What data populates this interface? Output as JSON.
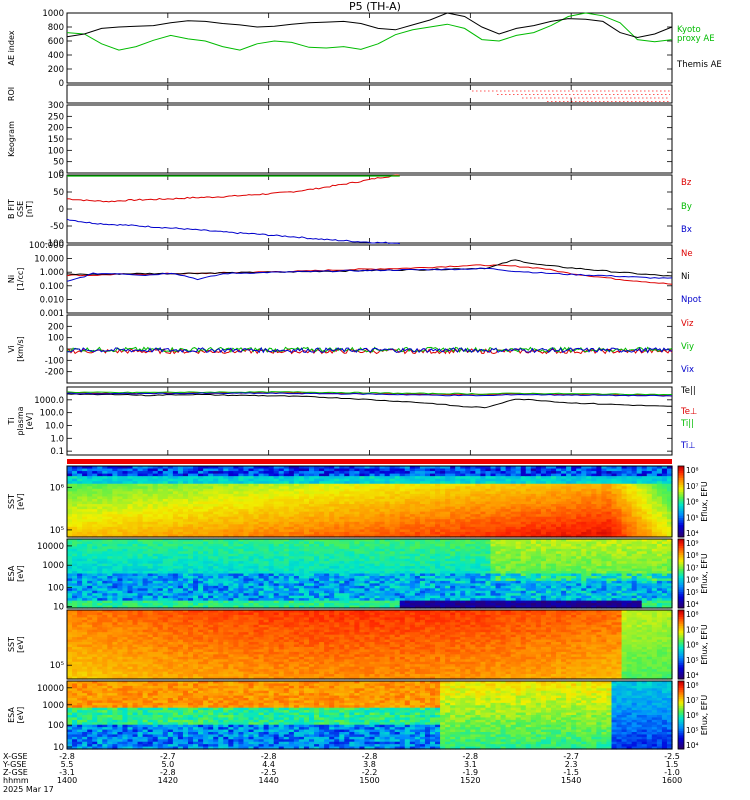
{
  "page": {
    "title": "P5 (TH-A)"
  },
  "chart_data": [
    {
      "id": "ae",
      "type": "line",
      "ylabel": "AE index",
      "ylim": [
        0,
        1000
      ],
      "yticks": [
        0,
        200,
        400,
        600,
        800,
        1000
      ],
      "series": [
        {
          "name": "Kyoto proxy AE",
          "legend_lines": [
            "Kyoto",
            "proxy AE"
          ],
          "color": "#00bb00",
          "values": [
            720,
            700,
            560,
            470,
            520,
            610,
            680,
            630,
            600,
            520,
            470,
            560,
            600,
            580,
            510,
            500,
            520,
            480,
            560,
            690,
            760,
            800,
            840,
            780,
            620,
            600,
            680,
            720,
            820,
            950,
            1000,
            960,
            860,
            620,
            590,
            620
          ]
        },
        {
          "name": "Themis AE",
          "legend_lines": [
            "Themis AE"
          ],
          "color": "#000000",
          "values": [
            660,
            700,
            780,
            800,
            810,
            820,
            860,
            890,
            880,
            850,
            830,
            800,
            810,
            840,
            860,
            870,
            880,
            850,
            780,
            760,
            830,
            900,
            1000,
            950,
            800,
            700,
            780,
            820,
            880,
            920,
            910,
            880,
            720,
            650,
            700,
            800
          ]
        }
      ]
    },
    {
      "id": "roi",
      "type": "scatter",
      "ylabel": "ROI",
      "rows": 4,
      "start_fraction": 0.67,
      "color": "#ff0000"
    },
    {
      "id": "keogram",
      "type": "heatmap",
      "ylabel": "Keogram",
      "yticks": [
        0,
        50,
        100,
        150,
        200,
        250,
        300
      ],
      "ylim": [
        0,
        300
      ]
    },
    {
      "id": "bfield",
      "type": "line",
      "ylabel": "B FIT",
      "ylabel2": "GSE",
      "ylabel3": "[nT]",
      "ylim": [
        -100,
        100
      ],
      "yticks": [
        -100,
        -50,
        0,
        50,
        100
      ],
      "ytick_labels": [
        "-100",
        "-50",
        "0",
        "50",
        "100"
      ],
      "series": [
        {
          "name": "Bz",
          "color": "#dd0000",
          "t_end": 0.55,
          "values": [
            30,
            25,
            22,
            26,
            28,
            30,
            33,
            35,
            38,
            42,
            46,
            52,
            60,
            70,
            80,
            92,
            100
          ]
        },
        {
          "name": "By",
          "color": "#00bb00",
          "t_end": 0.55,
          "values": [
            100,
            100,
            100,
            100,
            100,
            100,
            100,
            100,
            100,
            100,
            100,
            100,
            100,
            100,
            100,
            100,
            100
          ]
        },
        {
          "name": "Bx",
          "color": "#0000cc",
          "t_end": 0.55,
          "values": [
            -30,
            -40,
            -45,
            -48,
            -52,
            -56,
            -60,
            -65,
            -70,
            -73,
            -78,
            -82,
            -88,
            -92,
            -96,
            -99,
            -100
          ]
        }
      ]
    },
    {
      "id": "density",
      "type": "line",
      "ylabel": "Ni",
      "ylabel2": "[1/cc]",
      "yscale": "log",
      "ylim": [
        0.001,
        100
      ],
      "yticks": [
        0.001,
        0.01,
        0.1,
        1,
        10,
        100
      ],
      "ytick_labels": [
        "0.001",
        "0.010",
        "0.100",
        "1.000",
        "10.000",
        "100.000"
      ],
      "series": [
        {
          "name": "Ne",
          "color": "#dd0000",
          "values": [
            0.6,
            0.6,
            0.7,
            0.7,
            0.8,
            0.8,
            0.9,
            1.0,
            1.1,
            1.2,
            1.4,
            1.6,
            1.8,
            2.0,
            2.4,
            3.0,
            3.3,
            2.8,
            2.0,
            0.9,
            0.5,
            0.3,
            0.2,
            0.13
          ]
        },
        {
          "name": "Ni",
          "color": "#000000",
          "values": [
            0.7,
            0.7,
            0.75,
            0.8,
            0.8,
            0.85,
            0.9,
            0.95,
            1.0,
            1.1,
            1.2,
            1.3,
            1.4,
            1.5,
            1.6,
            1.8,
            2.0,
            8.0,
            3.5,
            2.2,
            1.5,
            1.0,
            0.7,
            0.5
          ]
        },
        {
          "name": "Npot",
          "color": "#0000cc",
          "values": [
            0.2,
            0.8,
            0.8,
            0.6,
            0.9,
            0.3,
            0.8,
            0.9,
            1.0,
            1.1,
            1.2,
            1.3,
            1.4,
            1.5,
            1.6,
            1.7,
            1.9,
            1.2,
            0.9,
            0.7,
            0.6,
            0.5,
            0.4,
            0.35
          ]
        }
      ]
    },
    {
      "id": "velocity",
      "type": "line",
      "ylabel": "Vi",
      "ylabel2": "[km/s]",
      "ylim": [
        -300,
        300
      ],
      "yticks": [
        -200,
        -100,
        0,
        100,
        200
      ],
      "ytick_labels": [
        "-200",
        "-100",
        "0",
        "100",
        "200"
      ],
      "series": [
        {
          "name": "Viz",
          "color": "#dd0000"
        },
        {
          "name": "Viy",
          "color": "#00bb00"
        },
        {
          "name": "Vix",
          "color": "#0000cc"
        }
      ]
    },
    {
      "id": "temperature",
      "type": "line",
      "ylabel": "Ti",
      "ylabel2": "plasma",
      "ylabel3": "[eV]",
      "yscale": "log",
      "ylim": [
        0.05,
        10000
      ],
      "yticks": [
        0.1,
        1,
        10,
        100,
        1000
      ],
      "ytick_labels": [
        "0.1",
        "1.0",
        "10.0",
        "100.0",
        "1000.0"
      ],
      "series": [
        {
          "name": "Te||",
          "color": "#000000",
          "values": [
            3000,
            2500,
            2700,
            2200,
            2500,
            2600,
            2300,
            2200,
            2000,
            1800,
            1500,
            1200,
            900,
            700,
            500,
            300,
            250,
            1200,
            900,
            600,
            500,
            420,
            350,
            300
          ]
        },
        {
          "name": "Te⊥",
          "color": "#dd0000",
          "values": [
            3500,
            3300,
            3200,
            3300,
            3400,
            3400,
            3500,
            3500,
            3600,
            3500,
            3300,
            3100,
            3000,
            2900,
            2800,
            2700,
            2600,
            3000,
            2900,
            2700,
            2500,
            2400,
            2300,
            2200
          ]
        },
        {
          "name": "Ti||",
          "color": "#00bb00",
          "values": [
            4000,
            3800,
            3700,
            3800,
            3900,
            3900,
            4000,
            4000,
            4100,
            4000,
            3800,
            3600,
            3400,
            3200,
            3100,
            3000,
            2900,
            3200,
            3100,
            3000,
            2900,
            2800,
            2700,
            2500
          ]
        },
        {
          "name": "Ti⊥",
          "color": "#0000cc",
          "values": [
            3200,
            3000,
            3000,
            3100,
            3100,
            3200,
            3200,
            3300,
            3200,
            3100,
            3000,
            2900,
            2700,
            2500,
            2300,
            2200,
            2100,
            2600,
            2500,
            2400,
            2300,
            2200,
            2100,
            2000
          ]
        }
      ]
    },
    {
      "id": "sst_e",
      "type": "heatmap",
      "ylabel": "SST",
      "ylabel2": "[eV]",
      "ytick_labels": [
        "10⁵",
        "10⁶"
      ],
      "colorbar_label": "Eflux, EFU",
      "colorbar_ticks": [
        "10⁴",
        "10⁵",
        "10⁶",
        "10⁷",
        "10⁸"
      ]
    },
    {
      "id": "esa_e",
      "type": "heatmap",
      "ylabel": "ESA",
      "ylabel2": "[eV]",
      "ytick_labels": [
        "10",
        "100",
        "1000",
        "10000"
      ],
      "colorbar_label": "Eflux, EFU",
      "colorbar_ticks": [
        "10⁴",
        "10⁵",
        "10⁶",
        "10⁷",
        "10⁸",
        "10⁹"
      ]
    },
    {
      "id": "sst_i",
      "type": "heatmap",
      "ylabel": "SST",
      "ylabel2": "[eV]",
      "ytick_labels": [
        "10⁵"
      ],
      "colorbar_label": "Eflux, EFU",
      "colorbar_ticks": [
        "10⁴",
        "10⁵",
        "10⁶",
        "10⁷",
        "10⁸"
      ]
    },
    {
      "id": "esa_i",
      "type": "heatmap",
      "ylabel": "ESA",
      "ylabel2": "[eV]",
      "ytick_labels": [
        "10",
        "100",
        "1000",
        "10000"
      ],
      "colorbar_label": "Eflux, EFU",
      "colorbar_ticks": [
        "10⁴",
        "10⁵",
        "10⁶",
        "10⁷",
        "10⁸"
      ]
    }
  ],
  "x_axis": {
    "row_labels": [
      "X-GSE",
      "Y-GSE",
      "Z-GSE",
      "hhmm",
      "2025 Mar 17"
    ],
    "columns": [
      [
        "-2.8",
        "5.5",
        "-3.1",
        "1400"
      ],
      [
        "-2.7",
        "5.0",
        "-2.8",
        "1420"
      ],
      [
        "-2.8",
        "4.4",
        "-2.5",
        "1440"
      ],
      [
        "-2.8",
        "3.8",
        "-2.2",
        "1500"
      ],
      [
        "-2.8",
        "3.1",
        "-1.9",
        "1520"
      ],
      [
        "-2.7",
        "2.3",
        "-1.5",
        "1540"
      ],
      [
        "-2.5",
        "1.5",
        "-1.0",
        "1600"
      ]
    ]
  }
}
